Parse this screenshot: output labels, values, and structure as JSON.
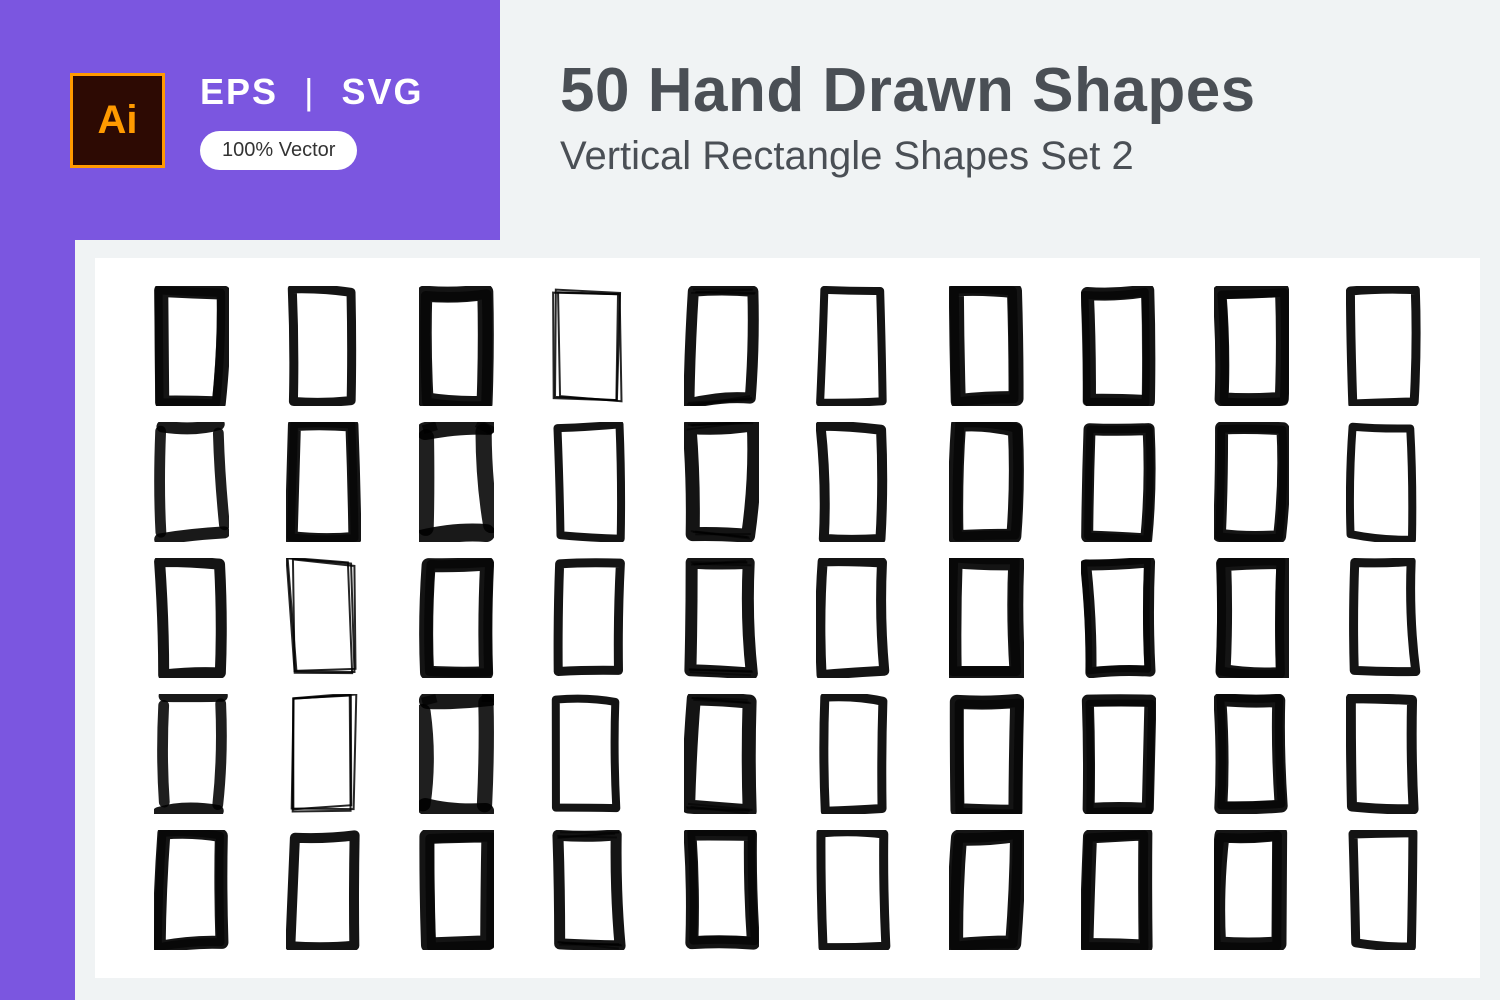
{
  "header": {
    "ai_label": "Ai",
    "format1": "EPS",
    "format2": "SVG",
    "vector_badge": "100% Vector",
    "title": "50 Hand Drawn Shapes",
    "subtitle": "Vertical Rectangle Shapes Set 2"
  },
  "colors": {
    "purple": "#7b56e0",
    "light_gray": "#f0f3f4",
    "text_dark": "#4a4f55",
    "ai_border": "#ff9a00",
    "ai_bg": "#2d0a03",
    "shape_color": "#000000",
    "canvas_bg": "#ffffff"
  },
  "grid": {
    "rows": 5,
    "cols": 10,
    "total": 50
  },
  "shapes": [
    {
      "stroke": 14,
      "variant": 0
    },
    {
      "stroke": 9,
      "variant": 1
    },
    {
      "stroke": 16,
      "variant": 2
    },
    {
      "stroke": 7,
      "variant": 3
    },
    {
      "stroke": 11,
      "variant": 4
    },
    {
      "stroke": 8,
      "variant": 1
    },
    {
      "stroke": 15,
      "variant": 0
    },
    {
      "stroke": 13,
      "variant": 2
    },
    {
      "stroke": 14,
      "variant": 0
    },
    {
      "stroke": 9,
      "variant": 1
    },
    {
      "stroke": 12,
      "variant": 5
    },
    {
      "stroke": 13,
      "variant": 0
    },
    {
      "stroke": 18,
      "variant": 6
    },
    {
      "stroke": 8,
      "variant": 1
    },
    {
      "stroke": 14,
      "variant": 4
    },
    {
      "stroke": 10,
      "variant": 1
    },
    {
      "stroke": 15,
      "variant": 0
    },
    {
      "stroke": 12,
      "variant": 2
    },
    {
      "stroke": 13,
      "variant": 0
    },
    {
      "stroke": 8,
      "variant": 1
    },
    {
      "stroke": 11,
      "variant": 1
    },
    {
      "stroke": 10,
      "variant": 3
    },
    {
      "stroke": 14,
      "variant": 0
    },
    {
      "stroke": 9,
      "variant": 1
    },
    {
      "stroke": 12,
      "variant": 4
    },
    {
      "stroke": 10,
      "variant": 1
    },
    {
      "stroke": 16,
      "variant": 0
    },
    {
      "stroke": 11,
      "variant": 2
    },
    {
      "stroke": 15,
      "variant": 0
    },
    {
      "stroke": 9,
      "variant": 1
    },
    {
      "stroke": 12,
      "variant": 5
    },
    {
      "stroke": 11,
      "variant": 3
    },
    {
      "stroke": 17,
      "variant": 6
    },
    {
      "stroke": 8,
      "variant": 1
    },
    {
      "stroke": 14,
      "variant": 4
    },
    {
      "stroke": 9,
      "variant": 1
    },
    {
      "stroke": 14,
      "variant": 0
    },
    {
      "stroke": 12,
      "variant": 2
    },
    {
      "stroke": 13,
      "variant": 0
    },
    {
      "stroke": 10,
      "variant": 1
    },
    {
      "stroke": 13,
      "variant": 0
    },
    {
      "stroke": 10,
      "variant": 1
    },
    {
      "stroke": 15,
      "variant": 0
    },
    {
      "stroke": 11,
      "variant": 4
    },
    {
      "stroke": 13,
      "variant": 2
    },
    {
      "stroke": 9,
      "variant": 1
    },
    {
      "stroke": 16,
      "variant": 0
    },
    {
      "stroke": 14,
      "variant": 0
    },
    {
      "stroke": 15,
      "variant": 0
    },
    {
      "stroke": 9,
      "variant": 1
    }
  ]
}
